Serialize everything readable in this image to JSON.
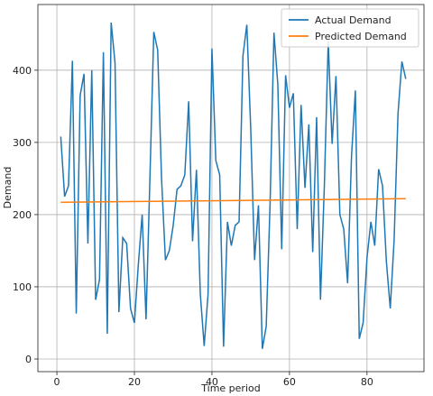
{
  "chart_data": {
    "type": "line",
    "xlabel": "Time period",
    "ylabel": "Demand",
    "xlim": [
      -4.9,
      94.7
    ],
    "ylim": [
      -17.5,
      491
    ],
    "xticks": [
      0,
      20,
      40,
      60,
      80
    ],
    "yticks": [
      0,
      100,
      200,
      300,
      400
    ],
    "grid": true,
    "legend": "upper right",
    "series": [
      {
        "name": "Actual Demand",
        "color": "#1f77b4",
        "x": [
          1,
          2,
          3,
          4,
          5,
          6,
          7,
          8,
          9,
          10,
          11,
          12,
          13,
          14,
          15,
          16,
          17,
          18,
          19,
          20,
          21,
          22,
          23,
          24,
          25,
          26,
          27,
          28,
          29,
          30,
          31,
          32,
          33,
          34,
          35,
          36,
          37,
          38,
          39,
          40,
          41,
          42,
          43,
          44,
          45,
          46,
          47,
          48,
          49,
          50,
          51,
          52,
          53,
          54,
          55,
          56,
          57,
          58,
          59,
          60,
          61,
          62,
          63,
          64,
          65,
          66,
          67,
          68,
          69,
          70,
          71,
          72,
          73,
          74,
          75,
          76,
          77,
          78,
          79,
          80,
          81,
          82,
          83,
          84,
          85,
          86,
          87,
          88,
          89,
          90
        ],
        "values": [
          308,
          225,
          240,
          413,
          63,
          365,
          395,
          160,
          400,
          82,
          110,
          425,
          35,
          466,
          410,
          65,
          168,
          160,
          70,
          50,
          130,
          200,
          55,
          250,
          453,
          428,
          250,
          137,
          150,
          185,
          235,
          240,
          255,
          357,
          163,
          262,
          90,
          18,
          90,
          430,
          275,
          255,
          17,
          190,
          157,
          185,
          190,
          420,
          463,
          320,
          137,
          213,
          14,
          45,
          215,
          452,
          380,
          152,
          393,
          348,
          368,
          180,
          352,
          237,
          325,
          148,
          335,
          82,
          240,
          440,
          298,
          392,
          200,
          180,
          105,
          280,
          372,
          28,
          50,
          140,
          190,
          157,
          263,
          240,
          135,
          70,
          165,
          340,
          412,
          388
        ]
      },
      {
        "name": "Predicted Demand",
        "color": "#ff7f0e",
        "x": [
          1,
          90
        ],
        "values": [
          217,
          222
        ]
      }
    ]
  }
}
